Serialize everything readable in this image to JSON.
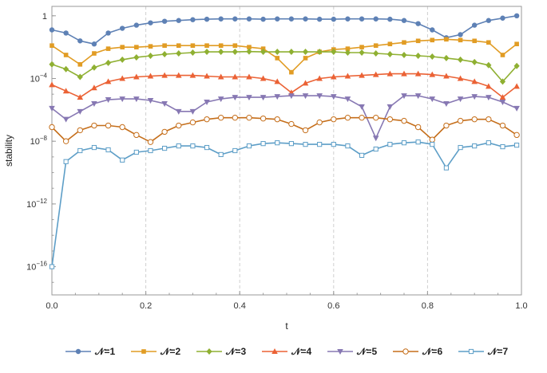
{
  "chart_data": {
    "type": "line",
    "title": "",
    "xlabel": "t",
    "ylabel": "stability",
    "xlim": [
      0,
      1
    ],
    "ylim_log10": [
      -17.8,
      0.6
    ],
    "y_scale": "log",
    "grid": "vertical dashed at x ticks",
    "legend_position": "bottom",
    "x_ticks": [
      {
        "value": 0,
        "label": "0.0"
      },
      {
        "value": 0.2,
        "label": "0.2"
      },
      {
        "value": 0.4,
        "label": "0.4"
      },
      {
        "value": 0.6,
        "label": "0.6"
      },
      {
        "value": 0.8,
        "label": "0.8"
      },
      {
        "value": 1.0,
        "label": "1.0"
      }
    ],
    "y_ticks": [
      {
        "exponent": 0,
        "base": "1",
        "sup": ""
      },
      {
        "exponent": -4,
        "base": "10",
        "sup": "−4"
      },
      {
        "exponent": -8,
        "base": "10",
        "sup": "−8"
      },
      {
        "exponent": -12,
        "base": "10",
        "sup": "−12"
      },
      {
        "exponent": -16,
        "base": "10",
        "sup": "−16"
      }
    ],
    "x": [
      0.0,
      0.03,
      0.06,
      0.09,
      0.12,
      0.15,
      0.18,
      0.21,
      0.24,
      0.27,
      0.3,
      0.33,
      0.36,
      0.39,
      0.42,
      0.45,
      0.48,
      0.51,
      0.54,
      0.57,
      0.6,
      0.63,
      0.66,
      0.69,
      0.72,
      0.75,
      0.78,
      0.81,
      0.84,
      0.87,
      0.9,
      0.93,
      0.96,
      0.99
    ],
    "series": [
      {
        "name": "𝒩=1",
        "color": "#5e81b5",
        "marker": "circle",
        "log10_values": [
          -0.9,
          -1.1,
          -1.6,
          -1.8,
          -1.1,
          -0.8,
          -0.6,
          -0.45,
          -0.35,
          -0.3,
          -0.25,
          -0.22,
          -0.2,
          -0.2,
          -0.2,
          -0.22,
          -0.2,
          -0.2,
          -0.2,
          -0.22,
          -0.22,
          -0.2,
          -0.2,
          -0.2,
          -0.22,
          -0.3,
          -0.5,
          -0.9,
          -1.4,
          -1.2,
          -0.6,
          -0.3,
          -0.15,
          0.0
        ]
      },
      {
        "name": "𝒩=2",
        "color": "#e19c24",
        "marker": "square",
        "log10_values": [
          -1.9,
          -2.5,
          -3.1,
          -2.4,
          -2.1,
          -2.0,
          -2.0,
          -1.95,
          -1.9,
          -1.9,
          -1.9,
          -1.9,
          -1.9,
          -1.9,
          -2.0,
          -2.1,
          -2.7,
          -3.6,
          -2.7,
          -2.3,
          -2.15,
          -2.1,
          -2.0,
          -1.9,
          -1.8,
          -1.7,
          -1.6,
          -1.55,
          -1.5,
          -1.55,
          -1.6,
          -1.7,
          -2.5,
          -1.8
        ]
      },
      {
        "name": "𝒩=3",
        "color": "#8fb032",
        "marker": "diamond",
        "log10_values": [
          -3.1,
          -3.4,
          -3.9,
          -3.3,
          -3.0,
          -2.8,
          -2.65,
          -2.55,
          -2.45,
          -2.4,
          -2.35,
          -2.3,
          -2.3,
          -2.3,
          -2.28,
          -2.3,
          -2.3,
          -2.3,
          -2.3,
          -2.3,
          -2.3,
          -2.35,
          -2.35,
          -2.4,
          -2.45,
          -2.5,
          -2.55,
          -2.6,
          -2.7,
          -2.8,
          -2.95,
          -3.15,
          -4.2,
          -3.2
        ]
      },
      {
        "name": "𝒩=4",
        "color": "#eb6235",
        "marker": "triangle-up",
        "log10_values": [
          -4.4,
          -4.8,
          -5.2,
          -4.6,
          -4.2,
          -4.0,
          -3.9,
          -3.85,
          -3.8,
          -3.8,
          -3.8,
          -3.85,
          -3.9,
          -3.9,
          -3.9,
          -4.0,
          -4.2,
          -4.9,
          -4.3,
          -4.0,
          -3.9,
          -3.85,
          -3.8,
          -3.75,
          -3.7,
          -3.7,
          -3.7,
          -3.75,
          -3.85,
          -4.0,
          -4.2,
          -4.5,
          -5.2,
          -4.5
        ]
      },
      {
        "name": "𝒩=5",
        "color": "#8778b3",
        "marker": "triangle-down",
        "log10_values": [
          -5.9,
          -6.6,
          -6.1,
          -5.6,
          -5.35,
          -5.3,
          -5.3,
          -5.4,
          -5.6,
          -6.1,
          -6.1,
          -5.5,
          -5.3,
          -5.2,
          -5.2,
          -5.2,
          -5.15,
          -5.1,
          -5.1,
          -5.1,
          -5.15,
          -5.3,
          -5.8,
          -7.8,
          -5.8,
          -5.1,
          -5.1,
          -5.3,
          -5.6,
          -5.3,
          -5.15,
          -5.2,
          -5.5,
          -5.9
        ]
      },
      {
        "name": "𝒩=6",
        "color": "#c56e1a",
        "marker": "circle-open",
        "log10_values": [
          -7.1,
          -8.0,
          -7.3,
          -7.0,
          -7.0,
          -7.1,
          -7.6,
          -8.05,
          -7.4,
          -7.0,
          -6.8,
          -6.6,
          -6.5,
          -6.5,
          -6.5,
          -6.55,
          -6.6,
          -6.9,
          -7.3,
          -6.8,
          -6.6,
          -6.5,
          -6.5,
          -6.5,
          -6.6,
          -6.7,
          -7.1,
          -7.9,
          -7.0,
          -6.7,
          -6.6,
          -6.6,
          -7.0,
          -7.6
        ]
      },
      {
        "name": "𝒩=7",
        "color": "#5d9ec7",
        "marker": "square-open",
        "log10_values": [
          -16.0,
          -9.3,
          -8.6,
          -8.4,
          -8.55,
          -9.2,
          -8.7,
          -8.6,
          -8.45,
          -8.3,
          -8.3,
          -8.4,
          -8.85,
          -8.6,
          -8.3,
          -8.15,
          -8.1,
          -8.15,
          -8.2,
          -8.2,
          -8.2,
          -8.3,
          -8.9,
          -8.5,
          -8.2,
          -8.1,
          -8.05,
          -8.2,
          -9.7,
          -8.4,
          -8.3,
          -8.1,
          -8.35,
          -8.25
        ]
      }
    ]
  }
}
